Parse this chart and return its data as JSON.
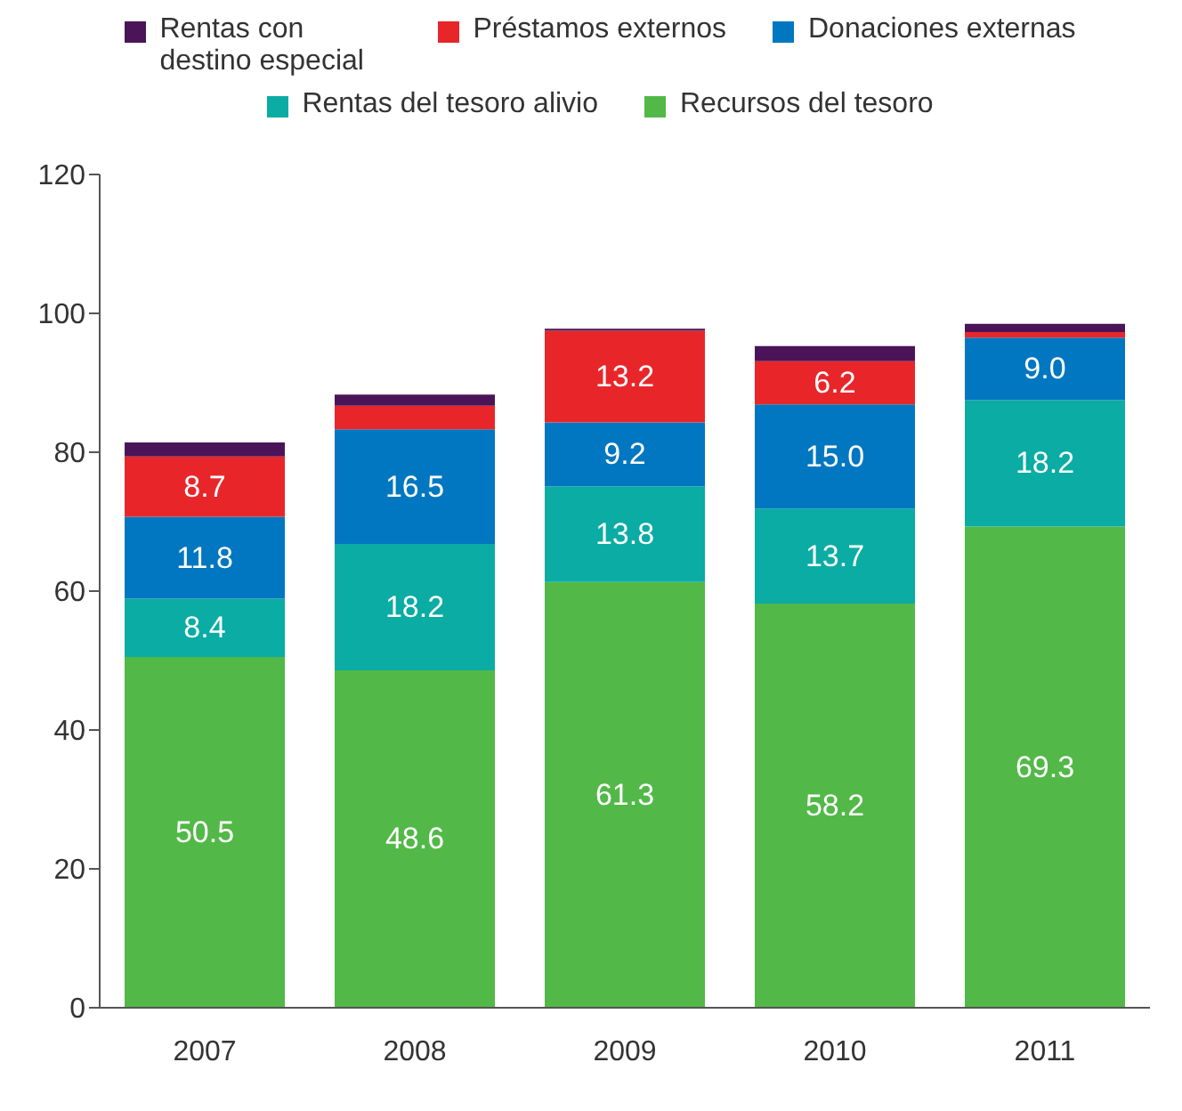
{
  "chart_data": {
    "type": "bar",
    "stacked": true,
    "categories": [
      "2007",
      "2008",
      "2009",
      "2010",
      "2011"
    ],
    "series": [
      {
        "name": "Recursos del tesoro",
        "color": "#52b847",
        "values": [
          50.5,
          48.6,
          61.3,
          58.2,
          69.3
        ],
        "value_labels": [
          "50.5",
          "48.6",
          "61.3",
          "58.2",
          "69.3"
        ]
      },
      {
        "name": "Rentas del tesoro alivio",
        "color": "#0aaca4",
        "values": [
          8.4,
          18.2,
          13.8,
          13.7,
          18.2
        ],
        "value_labels": [
          "8.4",
          "18.2",
          "13.8",
          "13.7",
          "18.2"
        ]
      },
      {
        "name": "Donaciones externas",
        "color": "#0077c0",
        "values": [
          11.8,
          16.5,
          9.2,
          15.0,
          9.0
        ],
        "value_labels": [
          "11.8",
          "16.5",
          "9.2",
          "15.0",
          "9.0"
        ]
      },
      {
        "name": "Préstamos externos",
        "color": "#e8262a",
        "values": [
          8.7,
          3.4,
          13.2,
          6.2,
          0.8
        ],
        "value_labels": [
          "8.7",
          null,
          "13.2",
          "6.2",
          null
        ]
      },
      {
        "name": "Rentas con destino especial",
        "color": "#4b1458",
        "values": [
          2.0,
          1.6,
          0.3,
          2.2,
          1.2
        ],
        "value_labels": [
          null,
          null,
          null,
          null,
          null
        ]
      }
    ],
    "ylim": [
      0,
      120
    ],
    "yticks": [
      0,
      20,
      40,
      60,
      80,
      100,
      120
    ],
    "grid": false,
    "legend": "top"
  }
}
